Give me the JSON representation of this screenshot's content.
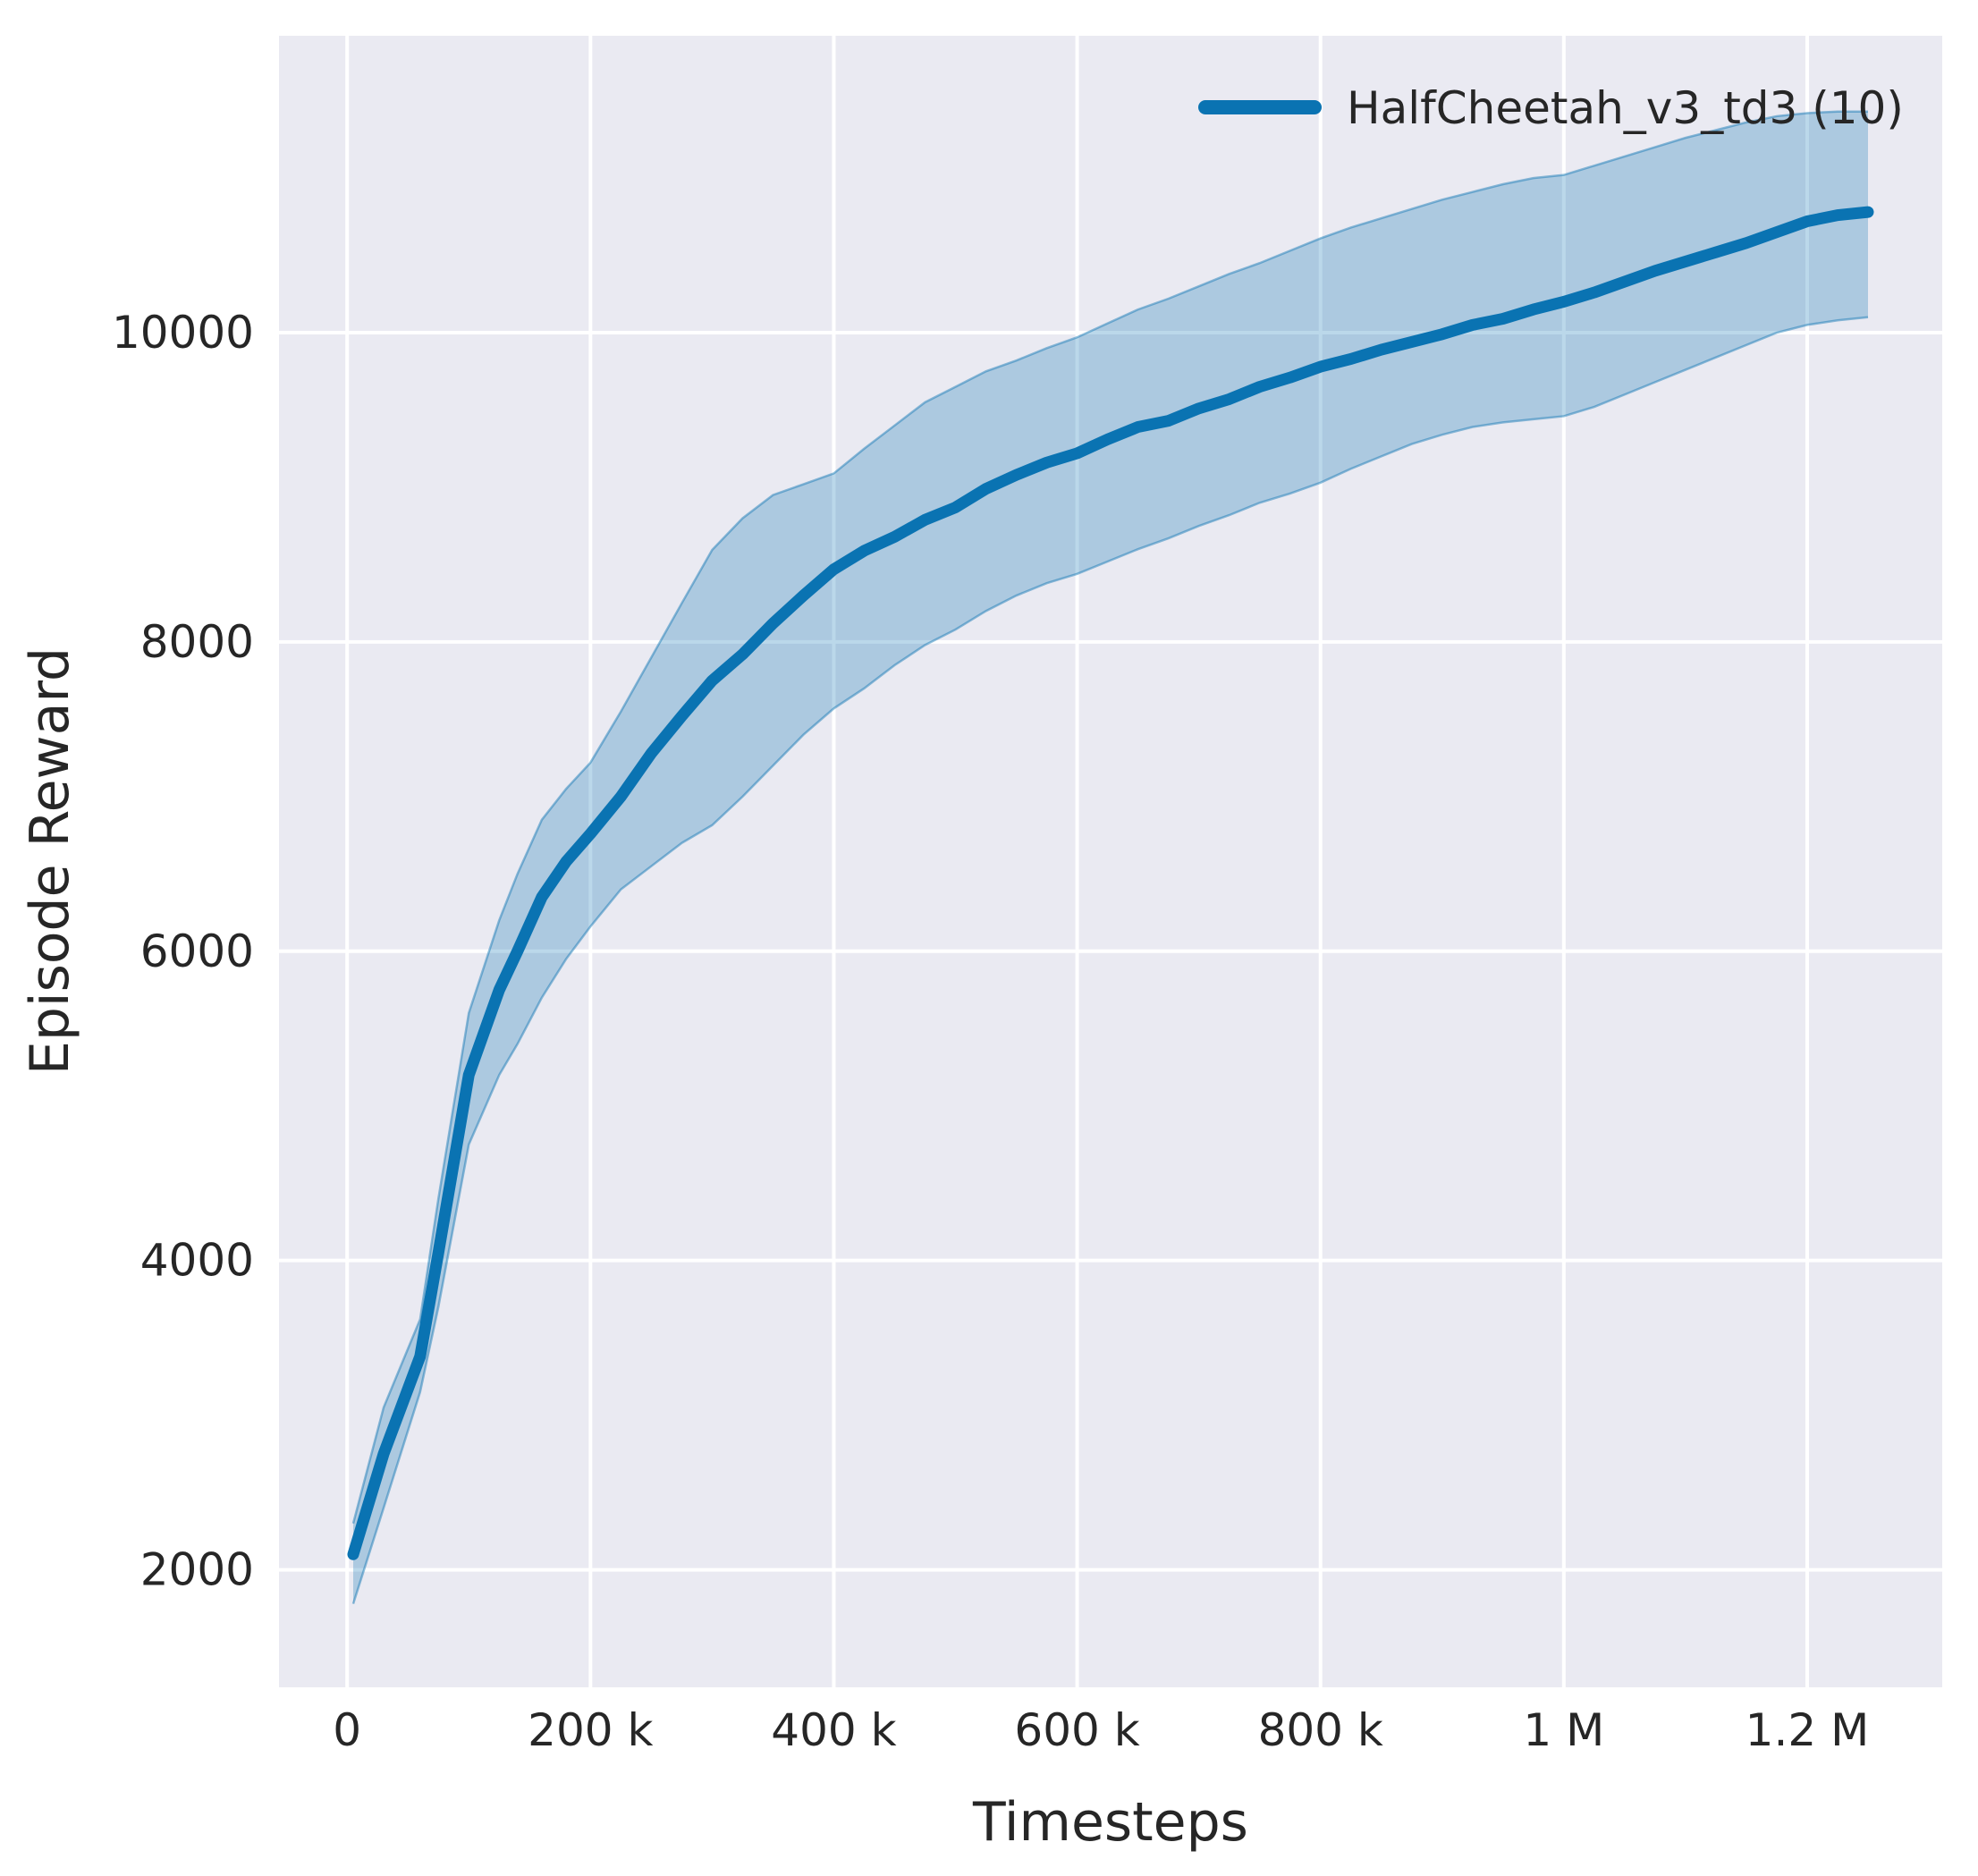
{
  "figure": {
    "background": "#ffffff",
    "axes_background": "#eaeaf2",
    "grid_color": "#ffffff",
    "text_color": "#262626"
  },
  "legend": {
    "label": "HalfCheetah_v3_td3 (10)",
    "line_color": "#0a73b2",
    "position": "upper right"
  },
  "chart_data": {
    "type": "line",
    "title": "",
    "xlabel": "Timesteps",
    "ylabel": "Episode Reward",
    "xlim": [
      -56000,
      1311000
    ],
    "ylim": [
      1240,
      11920
    ],
    "grid": true,
    "legend_position": "upper right",
    "xticks": {
      "values": [
        0,
        200000,
        400000,
        600000,
        800000,
        1000000,
        1200000
      ],
      "labels": [
        "0",
        "200 k",
        "400 k",
        "600 k",
        "800 k",
        "1 M",
        "1.2 M"
      ]
    },
    "yticks": {
      "values": [
        2000,
        4000,
        6000,
        8000,
        10000
      ],
      "labels": [
        "2000",
        "4000",
        "6000",
        "8000",
        "10000"
      ]
    },
    "series": [
      {
        "name": "HalfCheetah_v3_td3 (10)",
        "color": "#0a73b2",
        "band_alpha": 0.28,
        "x": [
          5000,
          30000,
          60000,
          75000,
          100000,
          125000,
          140000,
          160000,
          180000,
          200000,
          225000,
          250000,
          275000,
          300000,
          325000,
          350000,
          375000,
          400000,
          425000,
          450000,
          475000,
          500000,
          525000,
          550000,
          575000,
          600000,
          625000,
          650000,
          675000,
          700000,
          725000,
          750000,
          775000,
          800000,
          825000,
          850000,
          875000,
          900000,
          925000,
          950000,
          975000,
          1000000,
          1025000,
          1050000,
          1075000,
          1100000,
          1125000,
          1150000,
          1175000,
          1200000,
          1225000,
          1250000
        ],
        "mean": [
          2100,
          2750,
          3380,
          4050,
          5200,
          5750,
          6000,
          6350,
          6580,
          6760,
          7000,
          7280,
          7520,
          7750,
          7920,
          8120,
          8300,
          8470,
          8590,
          8680,
          8790,
          8870,
          8990,
          9080,
          9160,
          9220,
          9310,
          9390,
          9430,
          9510,
          9570,
          9650,
          9710,
          9780,
          9830,
          9890,
          9940,
          9990,
          10050,
          10090,
          10150,
          10200,
          10260,
          10330,
          10400,
          10460,
          10520,
          10580,
          10650,
          10720,
          10760,
          10780
        ],
        "lower": [
          1780,
          2400,
          3150,
          3700,
          4750,
          5200,
          5400,
          5700,
          5950,
          6160,
          6400,
          6550,
          6700,
          6815,
          7000,
          7200,
          7400,
          7570,
          7700,
          7850,
          7980,
          8080,
          8200,
          8300,
          8380,
          8440,
          8520,
          8600,
          8670,
          8750,
          8820,
          8900,
          8960,
          9030,
          9120,
          9200,
          9280,
          9340,
          9390,
          9420,
          9440,
          9460,
          9520,
          9600,
          9680,
          9760,
          9840,
          9920,
          10000,
          10050,
          10080,
          10100
        ],
        "upper": [
          2300,
          3050,
          3620,
          4400,
          5600,
          6200,
          6500,
          6850,
          7050,
          7220,
          7550,
          7900,
          8250,
          8595,
          8800,
          8950,
          9020,
          9090,
          9250,
          9400,
          9550,
          9650,
          9750,
          9820,
          9900,
          9970,
          10060,
          10150,
          10220,
          10300,
          10380,
          10450,
          10530,
          10610,
          10680,
          10740,
          10800,
          10860,
          10910,
          10960,
          11000,
          11020,
          11080,
          11140,
          11200,
          11260,
          11310,
          11360,
          11400,
          11420,
          11430,
          11430
        ]
      }
    ]
  }
}
